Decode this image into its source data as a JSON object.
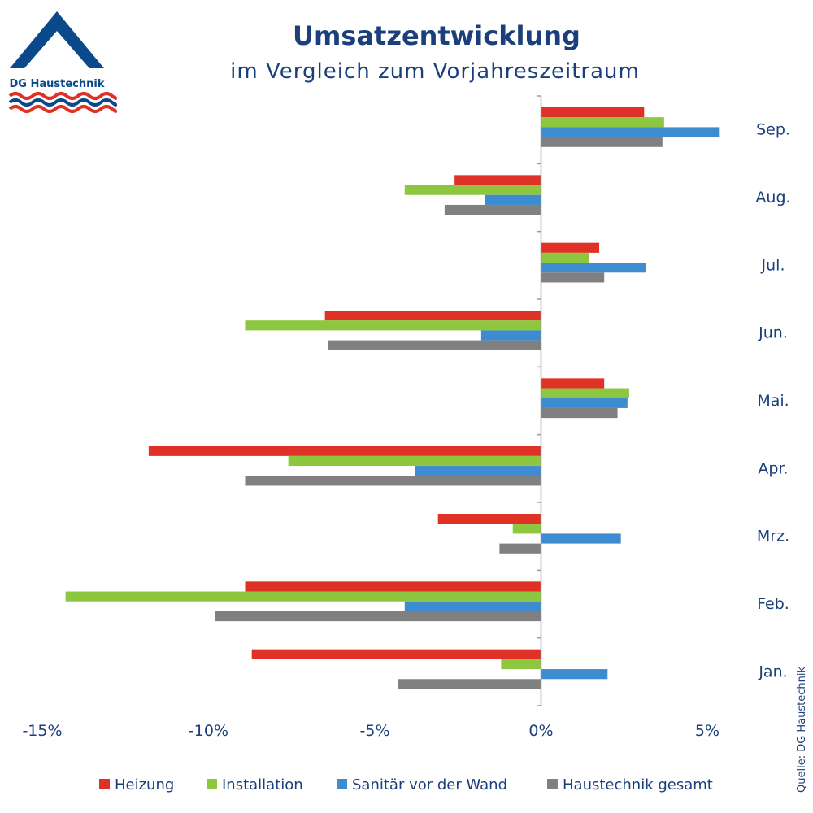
{
  "logo": {
    "text": "DG Haustechnik"
  },
  "colors": {
    "brand": "#0b4a8a",
    "heizung": "#e03127",
    "installation": "#8dc63f",
    "sanitaer": "#3d8bd1",
    "gesamt": "#808080",
    "axis": "#9a9a9a",
    "text": "#1a3f7a"
  },
  "source_note": "Quelle: DG Haustechnik",
  "chart_data": {
    "type": "bar",
    "orientation": "horizontal",
    "title": "Umsatzentwicklung",
    "subtitle": "im Vergleich zum Vorjahreszeitraum",
    "categories": [
      "Sep.",
      "Aug.",
      "Jul.",
      "Jun.",
      "Mai.",
      "Apr.",
      "Mrz.",
      "Feb.",
      "Jan."
    ],
    "series": [
      {
        "name": "Heizung",
        "color": "#e03127",
        "values": [
          3.1,
          -2.6,
          1.75,
          -6.5,
          1.9,
          -11.8,
          -3.1,
          -8.9,
          -8.7
        ]
      },
      {
        "name": "Installation",
        "color": "#8dc63f",
        "values": [
          3.7,
          -4.1,
          1.45,
          -8.9,
          2.65,
          -7.6,
          -0.85,
          -14.3,
          -1.2
        ]
      },
      {
        "name": "Sanitär vor der Wand",
        "color": "#3d8bd1",
        "values": [
          5.35,
          -1.7,
          3.15,
          -1.8,
          2.6,
          -3.8,
          2.4,
          -4.1,
          2.0
        ]
      },
      {
        "name": "Haustechnik gesamt",
        "color": "#808080",
        "values": [
          3.65,
          -2.9,
          1.9,
          -6.4,
          2.3,
          -8.9,
          -1.25,
          -9.8,
          -4.3
        ]
      }
    ],
    "xlim": [
      -15,
      5
    ],
    "xticks": [
      -15,
      -10,
      -5,
      0,
      5
    ],
    "xtick_labels": [
      "-15%",
      "-10%",
      "-5%",
      "0%",
      "5%"
    ],
    "legend_position": "bottom"
  }
}
